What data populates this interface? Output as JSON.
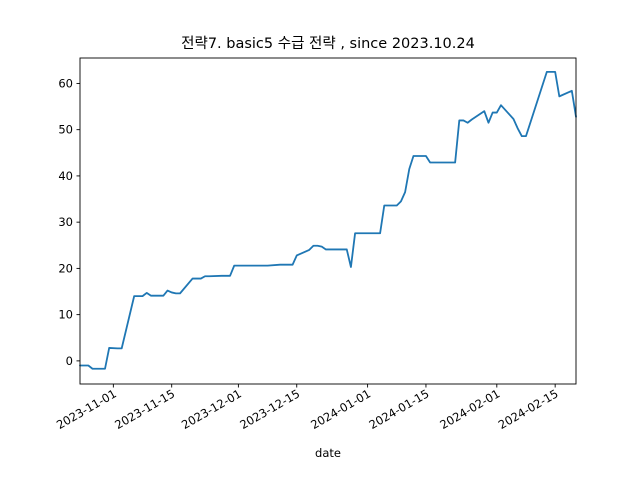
{
  "chart_data": {
    "type": "line",
    "title": "전략7. basic5 수급 전략 , since 2023.10.24",
    "xlabel": "date",
    "ylabel": "",
    "xlim": [
      "2023-10-24",
      "2024-02-20"
    ],
    "ylim": [
      -5,
      65.5
    ],
    "grid": false,
    "x_ticks": [
      "2023-11-01",
      "2023-11-15",
      "2023-12-01",
      "2023-12-15",
      "2024-01-01",
      "2024-01-15",
      "2024-02-01",
      "2024-02-15"
    ],
    "y_ticks": [
      0,
      10,
      20,
      30,
      40,
      50,
      60
    ],
    "colors": {
      "series": "#1f77b4"
    },
    "series": [
      {
        "name": "",
        "points": [
          [
            "2023-10-24",
            -1.0
          ],
          [
            "2023-10-26",
            -1.0
          ],
          [
            "2023-10-27",
            -1.7
          ],
          [
            "2023-10-30",
            -1.7
          ],
          [
            "2023-10-31",
            2.8
          ],
          [
            "2023-11-02",
            2.7
          ],
          [
            "2023-11-03",
            2.7
          ],
          [
            "2023-11-06",
            14.0
          ],
          [
            "2023-11-07",
            14.0
          ],
          [
            "2023-11-08",
            14.0
          ],
          [
            "2023-11-09",
            14.7
          ],
          [
            "2023-11-10",
            14.1
          ],
          [
            "2023-11-13",
            14.1
          ],
          [
            "2023-11-14",
            15.2
          ],
          [
            "2023-11-15",
            14.8
          ],
          [
            "2023-11-16",
            14.6
          ],
          [
            "2023-11-17",
            14.6
          ],
          [
            "2023-11-20",
            17.8
          ],
          [
            "2023-11-21",
            17.8
          ],
          [
            "2023-11-22",
            17.8
          ],
          [
            "2023-11-23",
            18.3
          ],
          [
            "2023-11-24",
            18.3
          ],
          [
            "2023-11-27",
            18.4
          ],
          [
            "2023-11-28",
            18.4
          ],
          [
            "2023-11-29",
            18.4
          ],
          [
            "2023-11-30",
            20.6
          ],
          [
            "2023-12-01",
            20.6
          ],
          [
            "2023-12-04",
            20.6
          ],
          [
            "2023-12-07",
            20.6
          ],
          [
            "2023-12-08",
            20.6
          ],
          [
            "2023-12-11",
            20.8
          ],
          [
            "2023-12-12",
            20.8
          ],
          [
            "2023-12-13",
            20.8
          ],
          [
            "2023-12-14",
            20.8
          ],
          [
            "2023-12-15",
            22.8
          ],
          [
            "2023-12-18",
            24.0
          ],
          [
            "2023-12-19",
            24.9
          ],
          [
            "2023-12-20",
            24.9
          ],
          [
            "2023-12-21",
            24.7
          ],
          [
            "2023-12-22",
            24.1
          ],
          [
            "2023-12-26",
            24.1
          ],
          [
            "2023-12-27",
            24.1
          ],
          [
            "2023-12-28",
            20.3
          ],
          [
            "2023-12-29",
            27.6
          ],
          [
            "2024-01-02",
            27.6
          ],
          [
            "2024-01-03",
            27.6
          ],
          [
            "2024-01-04",
            27.6
          ],
          [
            "2024-01-05",
            33.6
          ],
          [
            "2024-01-08",
            33.6
          ],
          [
            "2024-01-09",
            34.5
          ],
          [
            "2024-01-10",
            36.5
          ],
          [
            "2024-01-11",
            41.5
          ],
          [
            "2024-01-12",
            44.3
          ],
          [
            "2024-01-15",
            44.3
          ],
          [
            "2024-01-16",
            42.9
          ],
          [
            "2024-01-17",
            42.9
          ],
          [
            "2024-01-18",
            42.9
          ],
          [
            "2024-01-19",
            42.9
          ],
          [
            "2024-01-22",
            42.9
          ],
          [
            "2024-01-23",
            52.0
          ],
          [
            "2024-01-24",
            52.0
          ],
          [
            "2024-01-25",
            51.5
          ],
          [
            "2024-01-26",
            52.2
          ],
          [
            "2024-01-29",
            54.0
          ],
          [
            "2024-01-30",
            51.5
          ],
          [
            "2024-01-31",
            53.7
          ],
          [
            "2024-02-01",
            53.7
          ],
          [
            "2024-02-02",
            55.3
          ],
          [
            "2024-02-05",
            52.3
          ],
          [
            "2024-02-06",
            50.3
          ],
          [
            "2024-02-07",
            48.6
          ],
          [
            "2024-02-08",
            48.6
          ],
          [
            "2024-02-13",
            62.5
          ],
          [
            "2024-02-14",
            62.5
          ],
          [
            "2024-02-15",
            62.5
          ],
          [
            "2024-02-16",
            57.2
          ],
          [
            "2024-02-19",
            58.4
          ],
          [
            "2024-02-20",
            52.8
          ]
        ]
      }
    ]
  }
}
